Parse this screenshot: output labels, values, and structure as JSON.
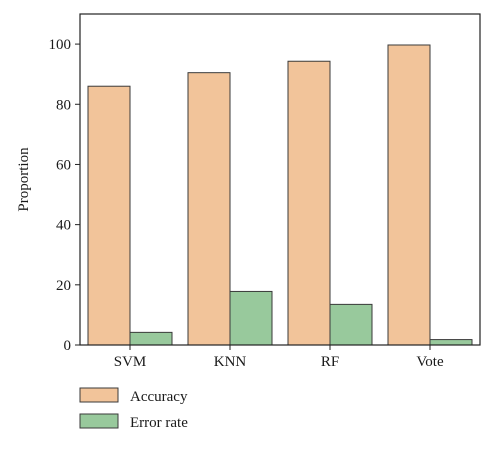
{
  "chart_data": {
    "type": "bar",
    "categories": [
      "SVM",
      "KNN",
      "RF",
      "Vote"
    ],
    "series": [
      {
        "name": "Accuracy",
        "values": [
          86,
          90.5,
          94.3,
          99.7
        ],
        "color": "#f2c49a"
      },
      {
        "name": "Error rate",
        "values": [
          4.2,
          17.8,
          13.5,
          1.8
        ],
        "color": "#98c99c"
      }
    ],
    "title": "",
    "xlabel": "",
    "ylabel": "Proportion",
    "ylim": [
      0,
      110
    ],
    "yticks": [
      "0",
      "20",
      "40",
      "60",
      "80",
      "100"
    ],
    "grid": false,
    "legend_position": "bottom-left",
    "bar_edge_color": "#3a3a3a"
  }
}
